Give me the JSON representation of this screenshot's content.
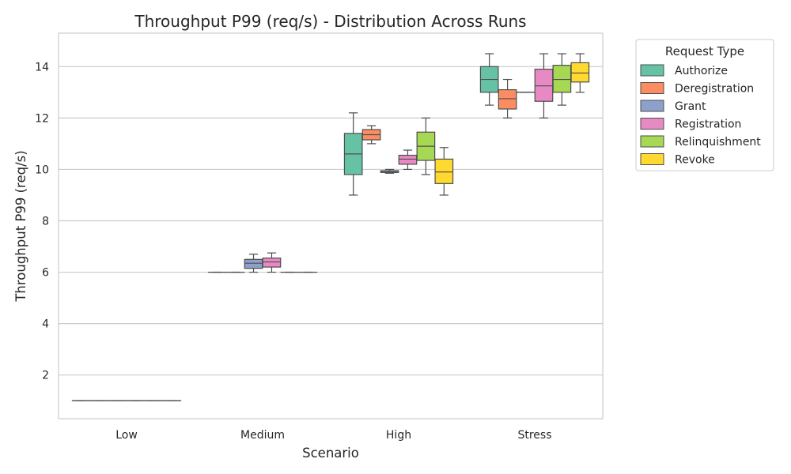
{
  "chart_data": {
    "type": "box",
    "title": "Throughput P99 (req/s) - Distribution Across Runs",
    "xlabel": "Scenario",
    "ylabel": "Throughput P99 (req/s)",
    "ylim": [
      0.3,
      15.3
    ],
    "yticks": [
      2,
      4,
      6,
      8,
      10,
      12,
      14
    ],
    "grid": "horizontal",
    "categories": [
      "Low",
      "Medium",
      "High",
      "Stress"
    ],
    "legend": {
      "title": "Request Type",
      "placement": "outside-right"
    },
    "series": [
      {
        "name": "Authorize",
        "color": "#66c2a5",
        "boxes": [
          {
            "min": 1.0,
            "q1": 1.0,
            "median": 1.0,
            "q3": 1.0,
            "max": 1.0
          },
          {
            "min": 6.0,
            "q1": 6.0,
            "median": 6.0,
            "q3": 6.0,
            "max": 6.0
          },
          {
            "min": 9.0,
            "q1": 9.8,
            "median": 10.6,
            "q3": 11.4,
            "max": 12.2
          },
          {
            "min": 12.5,
            "q1": 13.0,
            "median": 13.5,
            "q3": 14.0,
            "max": 14.5
          }
        ]
      },
      {
        "name": "Deregistration",
        "color": "#fc8d62",
        "boxes": [
          {
            "min": 1.0,
            "q1": 1.0,
            "median": 1.0,
            "q3": 1.0,
            "max": 1.0
          },
          {
            "min": 6.0,
            "q1": 6.0,
            "median": 6.0,
            "q3": 6.0,
            "max": 6.0
          },
          {
            "min": 11.0,
            "q1": 11.15,
            "median": 11.35,
            "q3": 11.55,
            "max": 11.7
          },
          {
            "min": 12.0,
            "q1": 12.35,
            "median": 12.75,
            "q3": 13.1,
            "max": 13.5
          }
        ]
      },
      {
        "name": "Grant",
        "color": "#8da0cb",
        "boxes": [
          {
            "min": 1.0,
            "q1": 1.0,
            "median": 1.0,
            "q3": 1.0,
            "max": 1.0
          },
          {
            "min": 6.0,
            "q1": 6.15,
            "median": 6.35,
            "q3": 6.5,
            "max": 6.7
          },
          {
            "min": 9.85,
            "q1": 9.88,
            "median": 9.9,
            "q3": 9.95,
            "max": 10.0
          },
          {
            "min": 13.0,
            "q1": 13.0,
            "median": 13.0,
            "q3": 13.0,
            "max": 13.0
          }
        ]
      },
      {
        "name": "Registration",
        "color": "#e78ac3",
        "boxes": [
          {
            "min": 1.0,
            "q1": 1.0,
            "median": 1.0,
            "q3": 1.0,
            "max": 1.0
          },
          {
            "min": 6.0,
            "q1": 6.2,
            "median": 6.4,
            "q3": 6.55,
            "max": 6.75
          },
          {
            "min": 10.0,
            "q1": 10.2,
            "median": 10.4,
            "q3": 10.55,
            "max": 10.75
          },
          {
            "min": 12.0,
            "q1": 12.65,
            "median": 13.25,
            "q3": 13.9,
            "max": 14.5
          }
        ]
      },
      {
        "name": "Relinquishment",
        "color": "#a6d854",
        "boxes": [
          {
            "min": 1.0,
            "q1": 1.0,
            "median": 1.0,
            "q3": 1.0,
            "max": 1.0
          },
          {
            "min": 6.0,
            "q1": 6.0,
            "median": 6.0,
            "q3": 6.0,
            "max": 6.0
          },
          {
            "min": 9.8,
            "q1": 10.35,
            "median": 10.9,
            "q3": 11.45,
            "max": 12.0
          },
          {
            "min": 12.5,
            "q1": 13.0,
            "median": 13.5,
            "q3": 14.05,
            "max": 14.5
          }
        ]
      },
      {
        "name": "Revoke",
        "color": "#ffd92f",
        "boxes": [
          {
            "min": 1.0,
            "q1": 1.0,
            "median": 1.0,
            "q3": 1.0,
            "max": 1.0
          },
          {
            "min": 6.0,
            "q1": 6.0,
            "median": 6.0,
            "q3": 6.0,
            "max": 6.0
          },
          {
            "min": 9.0,
            "q1": 9.45,
            "median": 9.9,
            "q3": 10.4,
            "max": 10.85
          },
          {
            "min": 13.0,
            "q1": 13.4,
            "median": 13.75,
            "q3": 14.15,
            "max": 14.5
          }
        ]
      }
    ]
  }
}
